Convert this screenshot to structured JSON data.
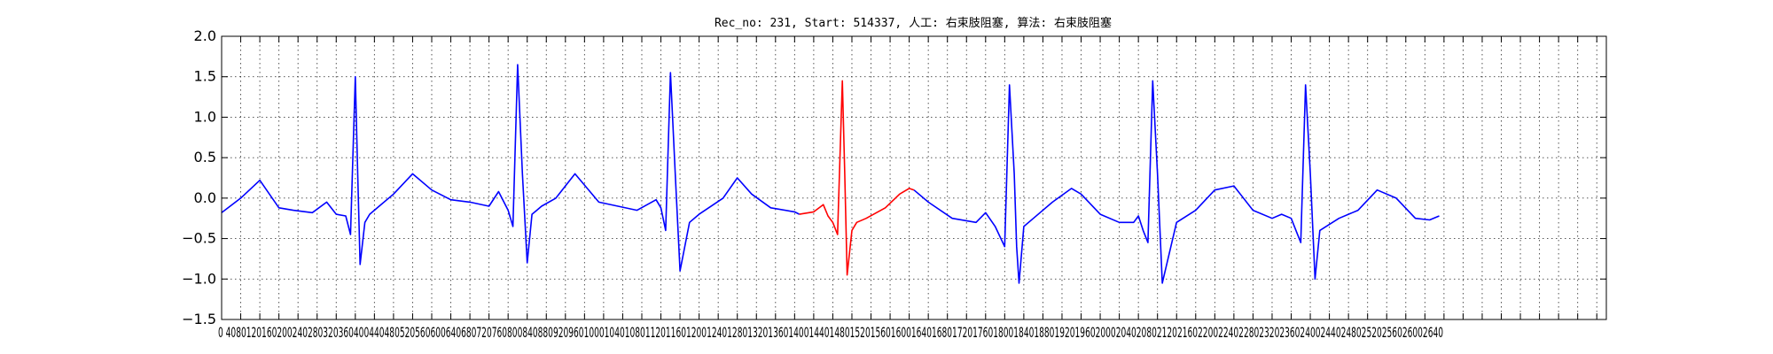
{
  "chart_data": {
    "type": "line",
    "title": "Rec_no: 231, Start: 514337, 人工: 右束肢阻塞, 算法: 右束肢阻塞",
    "xlabel": "",
    "ylabel": "",
    "xlim": [
      0,
      2900
    ],
    "ylim": [
      -1.5,
      2.0
    ],
    "yticks": [
      -1.5,
      -1.0,
      -0.5,
      0.0,
      0.5,
      1.0,
      1.5,
      2.0
    ],
    "ytick_labels": [
      "−1.5",
      "−1.0",
      "−0.5",
      "0.0",
      "0.5",
      "1.0",
      "1.5",
      "2.0"
    ],
    "xtick_step": 40,
    "xtick_labels": "0 4080120160200240280320360400440480520560600640680720760800840880920960100010401080112011601200124012801320136014001440148015201560160016401680172017601800184018801920196020002040208021202160220022402280232023602400244024802520256026002640",
    "grid": true,
    "series": [
      {
        "color": "#0000ff",
        "x": [
          0,
          40,
          80,
          120,
          150,
          190,
          220,
          240,
          260,
          270,
          280,
          285,
          290,
          300,
          310,
          330,
          360,
          400,
          440,
          480,
          520,
          560,
          580,
          600,
          610,
          620,
          630,
          640,
          645,
          650,
          660,
          670,
          700,
          740,
          790,
          830,
          870,
          910,
          920,
          930,
          940,
          950,
          960,
          980,
          1000,
          1050,
          1080,
          1110,
          1150,
          1200,
          1210
        ],
        "y": [
          -0.18,
          0.0,
          0.22,
          -0.12,
          -0.15,
          -0.18,
          -0.05,
          -0.2,
          -0.22,
          -0.45,
          1.5,
          0.3,
          -0.82,
          -0.3,
          -0.2,
          -0.1,
          0.05,
          0.3,
          0.1,
          -0.02,
          -0.05,
          -0.1,
          0.08,
          -0.15,
          -0.35,
          1.65,
          0.3,
          -0.8,
          -0.5,
          -0.2,
          -0.15,
          -0.1,
          0.0,
          0.3,
          -0.05,
          -0.1,
          -0.15,
          -0.02,
          -0.12,
          -0.4,
          1.55,
          0.3,
          -0.9,
          -0.3,
          -0.2,
          0.0,
          0.25,
          0.05,
          -0.12,
          -0.17,
          -0.2
        ]
      },
      {
        "color": "#ff0000",
        "x": [
          1210,
          1240,
          1260,
          1270,
          1280,
          1290,
          1300,
          1305,
          1310,
          1320,
          1330,
          1350,
          1390,
          1420,
          1440,
          1450
        ],
        "y": [
          -0.2,
          -0.17,
          -0.08,
          -0.22,
          -0.3,
          -0.45,
          1.45,
          0.3,
          -0.95,
          -0.4,
          -0.3,
          -0.25,
          -0.12,
          0.05,
          0.12,
          0.1
        ]
      },
      {
        "color": "#0000ff",
        "x": [
          1450,
          1480,
          1530,
          1580,
          1600,
          1620,
          1640,
          1650,
          1660,
          1665,
          1670,
          1680,
          1700,
          1740,
          1780,
          1800,
          1840,
          1880,
          1900,
          1910,
          1920,
          1930,
          1940,
          1950,
          1960,
          1970,
          2000,
          2040,
          2080,
          2120,
          2160,
          2200,
          2220,
          2240,
          2250,
          2260,
          2270,
          2280,
          2290,
          2300,
          2340,
          2380,
          2420,
          2460,
          2500,
          2530,
          2550
        ],
        "y": [
          0.1,
          -0.05,
          -0.25,
          -0.3,
          -0.18,
          -0.35,
          -0.6,
          1.4,
          0.3,
          -0.6,
          -1.05,
          -0.35,
          -0.25,
          -0.05,
          0.12,
          0.05,
          -0.2,
          -0.3,
          -0.3,
          -0.3,
          -0.22,
          -0.4,
          -0.55,
          1.45,
          0.3,
          -1.05,
          -0.3,
          -0.15,
          0.1,
          0.15,
          -0.15,
          -0.25,
          -0.2,
          -0.25,
          -0.4,
          -0.55,
          1.4,
          0.3,
          -1.0,
          -0.4,
          -0.25,
          -0.15,
          0.1,
          0.0,
          -0.25,
          -0.27,
          -0.22
        ]
      }
    ]
  }
}
